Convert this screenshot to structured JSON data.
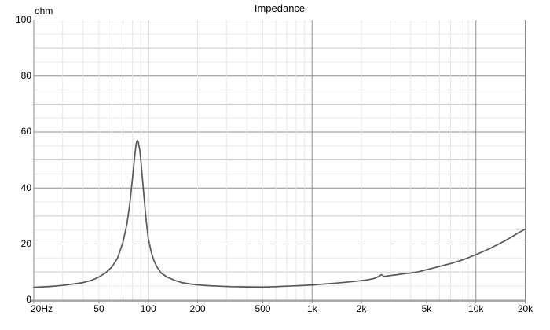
{
  "chart_data": {
    "type": "line",
    "title": "Impedance",
    "ylabel": "ohm",
    "x_scale": "log",
    "xlim": [
      20,
      20000
    ],
    "ylim": [
      0,
      100
    ],
    "grid": {
      "y_minor_step": 5,
      "y_medium_step": 10,
      "y_major_step": 20,
      "x_major_decades": [
        100,
        1000,
        10000
      ]
    },
    "y_ticks": [
      {
        "value": 0,
        "label": "0"
      },
      {
        "value": 20,
        "label": "20"
      },
      {
        "value": 40,
        "label": "40"
      },
      {
        "value": 60,
        "label": "60"
      },
      {
        "value": 80,
        "label": "80"
      },
      {
        "value": 100,
        "label": "100"
      }
    ],
    "x_ticks": [
      {
        "value": 20,
        "label": "20Hz"
      },
      {
        "value": 50,
        "label": "50"
      },
      {
        "value": 100,
        "label": "100"
      },
      {
        "value": 200,
        "label": "200"
      },
      {
        "value": 500,
        "label": "500"
      },
      {
        "value": 1000,
        "label": "1k"
      },
      {
        "value": 2000,
        "label": "2k"
      },
      {
        "value": 5000,
        "label": "5k"
      },
      {
        "value": 10000,
        "label": "10k"
      },
      {
        "value": 20000,
        "label": "20k"
      }
    ],
    "series": [
      {
        "name": "impedance-curve",
        "x": [
          20,
          25,
          30,
          35,
          40,
          45,
          50,
          55,
          60,
          65,
          70,
          74,
          77,
          80,
          82,
          84,
          85,
          86,
          87,
          89,
          91,
          94,
          97,
          100,
          104,
          108,
          113,
          120,
          130,
          145,
          160,
          180,
          200,
          230,
          270,
          320,
          400,
          500,
          600,
          700,
          800,
          900,
          1000,
          1200,
          1400,
          1700,
          2000,
          2200,
          2400,
          2550,
          2650,
          2750,
          2850,
          3000,
          3300,
          3700,
          4000,
          4500,
          5000,
          5500,
          6000,
          7000,
          8000,
          9000,
          10000,
          11000,
          12000,
          13500,
          15000,
          16500,
          18000,
          20000
        ],
        "y": [
          4.5,
          4.8,
          5.2,
          5.7,
          6.2,
          7.0,
          8.2,
          9.7,
          11.8,
          15.0,
          20.5,
          27,
          34,
          43,
          49.5,
          55,
          56.5,
          57,
          56.3,
          53,
          47,
          37.5,
          28.5,
          22,
          17.3,
          14.2,
          11.8,
          9.6,
          8.2,
          7.0,
          6.2,
          5.7,
          5.4,
          5.1,
          4.9,
          4.75,
          4.65,
          4.6,
          4.75,
          4.9,
          5.05,
          5.2,
          5.35,
          5.7,
          6.0,
          6.45,
          6.9,
          7.2,
          7.7,
          8.4,
          9.0,
          8.4,
          8.5,
          8.7,
          9.0,
          9.4,
          9.6,
          10.1,
          10.8,
          11.4,
          12.0,
          13.0,
          14.0,
          15.1,
          16.2,
          17.2,
          18.2,
          19.7,
          21.1,
          22.5,
          23.9,
          25.3
        ]
      }
    ],
    "annotations": {
      "peak_ohm": 57,
      "peak_freq_hz": 86
    },
    "legend": "none"
  },
  "colors": {
    "background": "#ffffff",
    "curve": "#575757",
    "grid_major": "#8f8f8f",
    "grid_medium": "#c9c9c9",
    "grid_minor": "#e7e7e7",
    "frame": "#8a8a8a",
    "axis_bottom": "#a9a9a9",
    "text": "#000000"
  }
}
